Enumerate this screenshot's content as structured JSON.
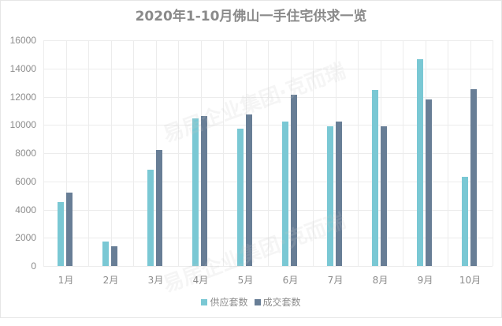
{
  "title": "2020年1-10月佛山一手住宅供求一览",
  "legend": [
    {
      "label": "供应套数",
      "color": "#7ac8d4"
    },
    {
      "label": "成交套数",
      "color": "#687e96"
    }
  ],
  "watermark": "易居企业集团·克而瑞",
  "chart_data": {
    "type": "bar",
    "title": "2020年1-10月佛山一手住宅供求一览",
    "xlabel": "",
    "ylabel": "",
    "categories": [
      "1月",
      "2月",
      "3月",
      "4月",
      "5月",
      "6月",
      "7月",
      "8月",
      "9月",
      "10月"
    ],
    "series": [
      {
        "name": "供应套数",
        "color": "#7ac8d4",
        "values": [
          4530,
          1750,
          6850,
          10450,
          9750,
          10250,
          9900,
          12450,
          14650,
          6330
        ]
      },
      {
        "name": "成交套数",
        "color": "#687e96",
        "values": [
          5200,
          1400,
          8200,
          10630,
          10750,
          12150,
          10250,
          9900,
          11800,
          12550
        ]
      }
    ],
    "ylim": [
      0,
      16000
    ],
    "yticks": [
      0,
      2000,
      4000,
      6000,
      8000,
      10000,
      12000,
      14000,
      16000
    ],
    "grid": true,
    "legend_position": "bottom"
  }
}
